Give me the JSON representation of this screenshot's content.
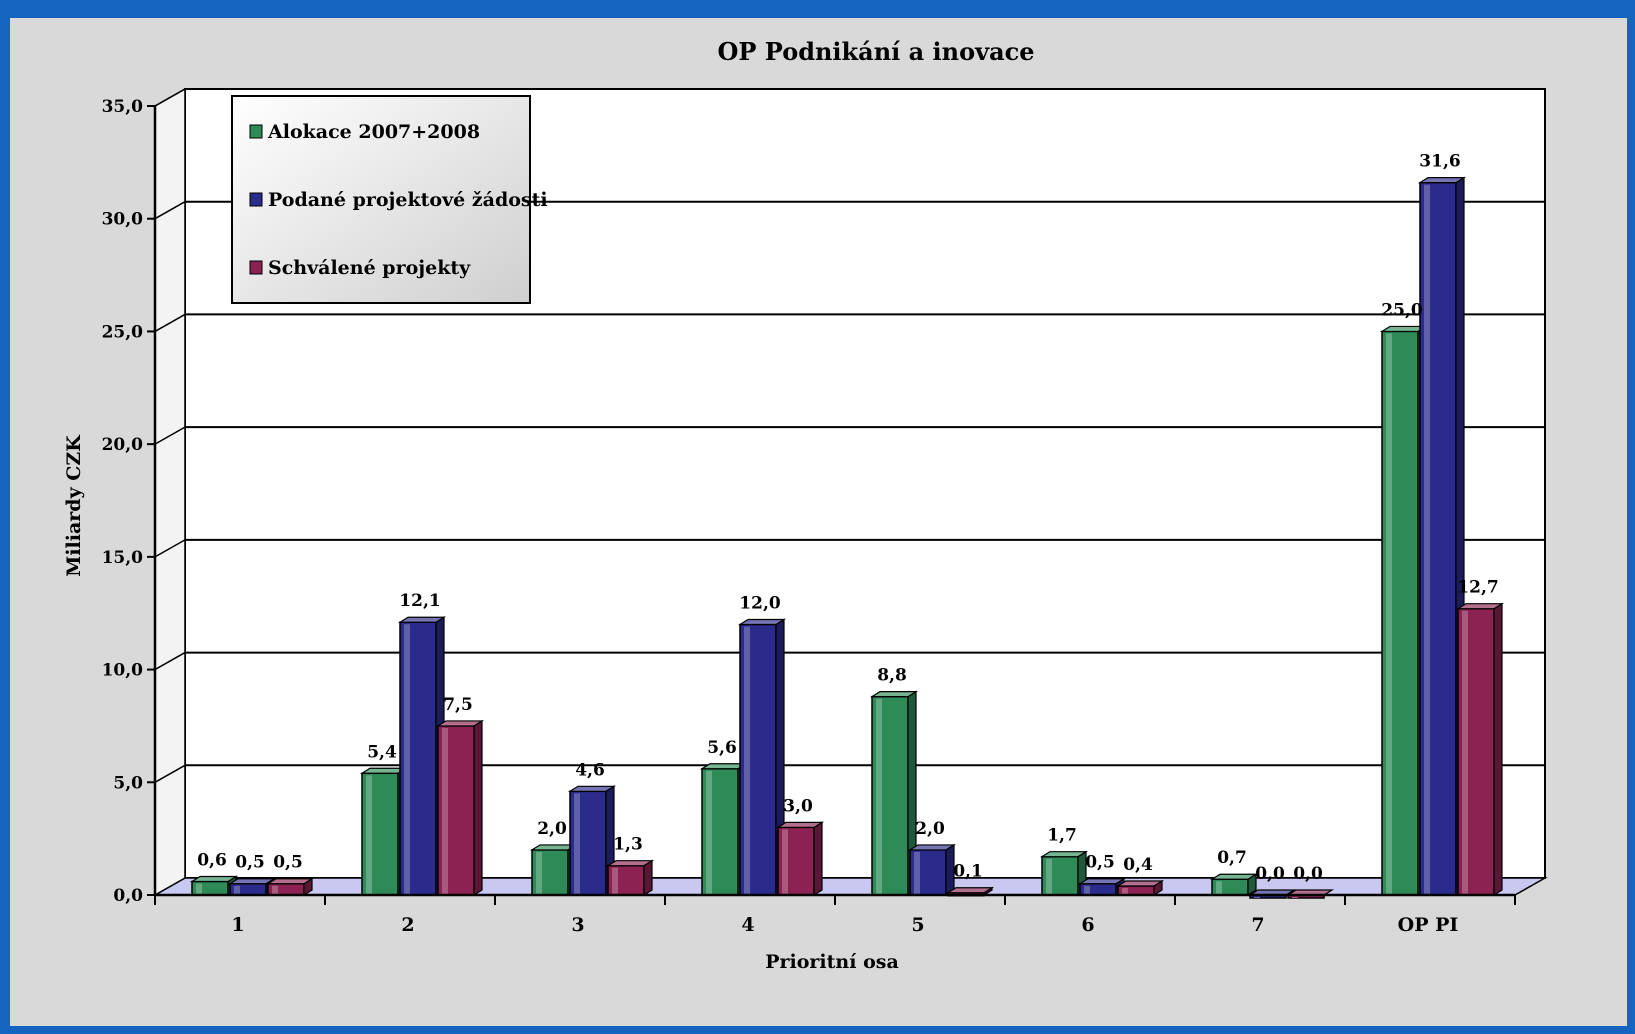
{
  "chart_data": {
    "type": "bar",
    "title": "OP Podnikání a inovace",
    "xlabel": "Prioritní osa",
    "ylabel": "Miliardy CZK",
    "categories": [
      "1",
      "2",
      "3",
      "4",
      "5",
      "6",
      "7",
      "OP PI"
    ],
    "ylim": [
      0,
      35
    ],
    "yticks": [
      "0,0",
      "5,0",
      "10,0",
      "15,0",
      "20,0",
      "25,0",
      "30,0",
      "35,0"
    ],
    "grid": true,
    "legend_position": "top-left",
    "series": [
      {
        "name": "Alokace 2007+2008",
        "color": "#2e8b57",
        "values": [
          0.6,
          5.4,
          2.0,
          5.6,
          8.8,
          1.7,
          0.7,
          25.0
        ],
        "labels": [
          "0,6",
          "5,4",
          "2,0",
          "5,6",
          "8,8",
          "1,7",
          "0,7",
          "25,0"
        ]
      },
      {
        "name": "Podané projektové žádosti",
        "color": "#2b2b8c",
        "values": [
          0.5,
          12.1,
          4.6,
          12.0,
          2.0,
          0.5,
          0.0,
          31.6
        ],
        "labels": [
          "0,5",
          "12,1",
          "4,6",
          "12,0",
          "2,0",
          "0,5",
          "0,0",
          "31,6"
        ]
      },
      {
        "name": "Schválené projekty",
        "color": "#8b2252",
        "values": [
          0.5,
          7.5,
          1.3,
          3.0,
          0.1,
          0.4,
          0.0,
          12.7
        ],
        "labels": [
          "0,5",
          "7,5",
          "1,3",
          "3,0",
          "0,1",
          "0,4",
          "0,0",
          "12,7"
        ]
      }
    ]
  }
}
